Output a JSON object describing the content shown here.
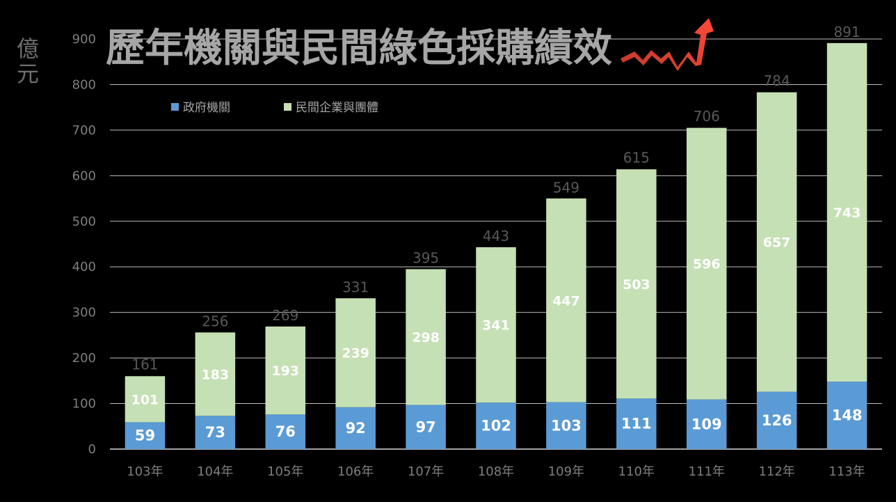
{
  "unit_label": [
    "億",
    "元"
  ],
  "chart_data": {
    "type": "bar",
    "stacked": true,
    "title": "歷年機關與民間綠色採購績效",
    "xlabel": "",
    "ylabel": "億元",
    "categories": [
      "103年",
      "104年",
      "105年",
      "106年",
      "107年",
      "108年",
      "109年",
      "110年",
      "111年",
      "112年",
      "113年"
    ],
    "series": [
      {
        "name": "政府機關",
        "color": "#5b9bd5",
        "values": [
          59,
          73,
          76,
          92,
          97,
          102,
          103,
          111,
          109,
          126,
          148
        ]
      },
      {
        "name": "民間企業與團體",
        "color": "#c5e0b4",
        "values": [
          101,
          183,
          193,
          239,
          298,
          341,
          447,
          503,
          596,
          657,
          743
        ]
      }
    ],
    "totals": [
      161,
      256,
      269,
      331,
      395,
      443,
      549,
      615,
      706,
      784,
      891
    ],
    "ylim": [
      0,
      900
    ],
    "yticks": [
      0,
      100,
      200,
      300,
      400,
      500,
      600,
      700,
      800,
      900
    ],
    "grid": true,
    "legend_position": "top-left",
    "title_color": "#a6a6a6",
    "arrow_color": "#ff3b2f"
  }
}
